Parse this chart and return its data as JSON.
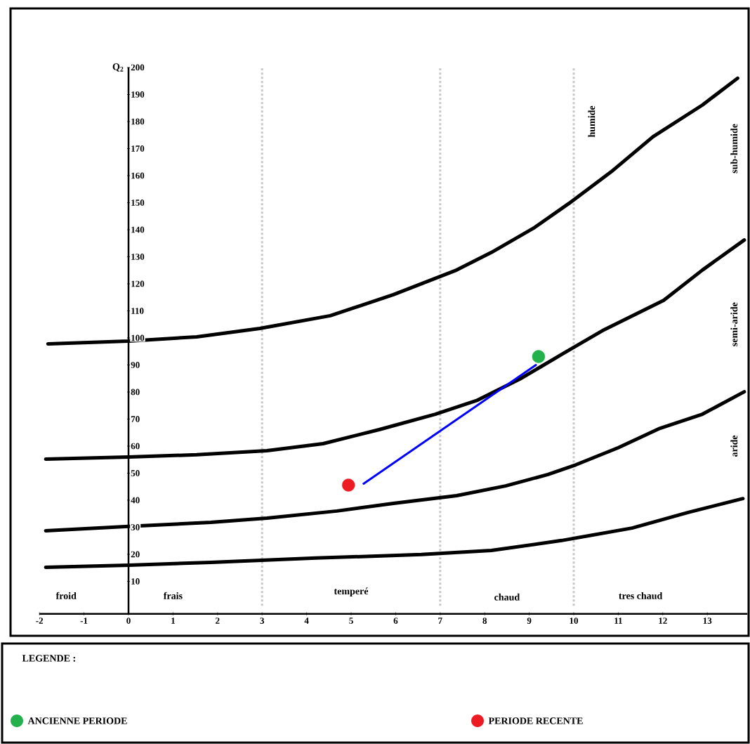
{
  "chart_data": {
    "type": "line",
    "ylabel": "Q$_{2}$",
    "legend_title": "LEGENDE :",
    "legend": "bottom",
    "xlim": [
      -2,
      13.9
    ],
    "ylim": [
      -2,
      200
    ],
    "xticks": [
      -2,
      -1,
      0,
      1,
      2,
      3,
      4,
      5,
      6,
      7,
      8,
      9,
      10,
      11,
      12,
      13
    ],
    "yticks": [
      10,
      20,
      30,
      40,
      50,
      60,
      70,
      80,
      90,
      100,
      110,
      120,
      130,
      140,
      150,
      160,
      170,
      180,
      190,
      200
    ],
    "series": [
      {
        "color": "#000000",
        "x": [
          -1.81,
          0,
          1.53,
          2.95,
          4.53,
          5.95,
          7.37,
          8.15,
          9.1,
          9.89,
          10.84,
          11.78,
          12.89,
          13.68
        ],
        "values": [
          97.8,
          98.8,
          100.4,
          103.5,
          108.2,
          116,
          125.1,
          131.6,
          140.6,
          149.7,
          161.4,
          174.4,
          186.1,
          196
        ]
      },
      {
        "color": "#000000",
        "x": [
          -1.86,
          0,
          1.53,
          3.11,
          4.37,
          5.63,
          6.89,
          7.84,
          8.79,
          9.73,
          10.68,
          12.02,
          12.89,
          13.83
        ],
        "values": [
          55.2,
          56,
          56.8,
          58.3,
          60.9,
          66.1,
          71.8,
          77,
          84.8,
          93.9,
          103,
          113.9,
          125.1,
          136.2
        ]
      },
      {
        "color": "#000000",
        "x": [
          -1.86,
          0,
          1.85,
          3.11,
          4.68,
          5.95,
          7.37,
          8.47,
          9.42,
          10.05,
          11,
          11.94,
          12.89,
          13.83
        ],
        "values": [
          28.7,
          30.3,
          31.8,
          33.4,
          36,
          38.8,
          41.7,
          45.3,
          49.5,
          53.1,
          59.4,
          66.6,
          71.8,
          80.1
        ]
      },
      {
        "color": "#000000",
        "x": [
          -1.86,
          0,
          1.85,
          4.21,
          6.58,
          8.15,
          9.73,
          11.31,
          12.57,
          13.8
        ],
        "values": [
          15.2,
          16,
          17,
          18.6,
          19.9,
          21.4,
          25.1,
          29.7,
          35.5,
          40.6
        ]
      },
      {
        "color": "#0000ff",
        "x": [
          5.28,
          9.15
        ],
        "values": [
          46.1,
          90
        ]
      },
      {
        "type": "scatter",
        "name": "ANCIENNE PERIODE",
        "color": "#22b14c",
        "marker": "circle",
        "x": [
          9.21
        ],
        "values": [
          93.1
        ]
      },
      {
        "type": "scatter",
        "name": "PERIODE RECENTE",
        "color": "#ed1c24",
        "marker": "circle",
        "x": [
          4.94
        ],
        "values": [
          45.6
        ]
      }
    ],
    "ref_lines": [
      {
        "axis": "x",
        "value": 3,
        "color": "#c8c8c8",
        "line_style": "dashed"
      },
      {
        "axis": "x",
        "value": 7,
        "color": "#c8c8c8",
        "line_style": "dashed"
      },
      {
        "axis": "x",
        "value": 10,
        "color": "#c8c8c8",
        "line_style": "dashed"
      }
    ],
    "annotations": [
      "froid",
      "frais",
      "temperé",
      "chaud",
      "tres chaud",
      "humide",
      "sub-humide",
      "semi-aride",
      "aride"
    ]
  }
}
